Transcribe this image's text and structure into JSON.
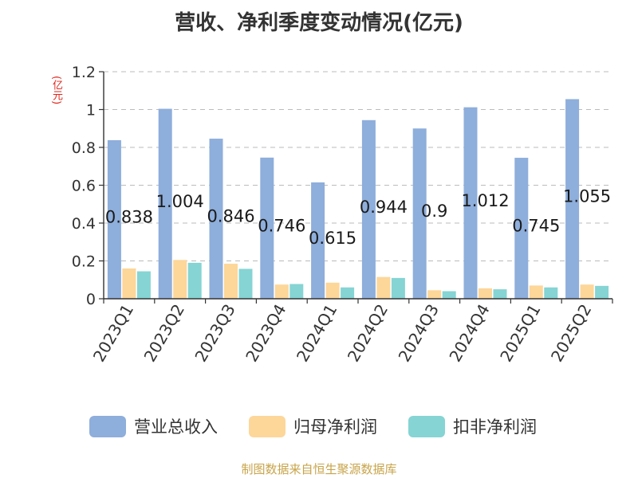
{
  "title": "营收、净利季度变动情况(亿元)",
  "unit": "(亿元)",
  "source": "制图数据来自恒生聚源数据库",
  "chart_data": {
    "type": "bar",
    "categories": [
      "2023Q1",
      "2023Q2",
      "2023Q3",
      "2023Q4",
      "2024Q1",
      "2024Q2",
      "2024Q3",
      "2024Q4",
      "2025Q1",
      "2025Q2"
    ],
    "series": [
      {
        "name": "营业总收入",
        "color": "#8eaedb",
        "values": [
          0.838,
          1.004,
          0.846,
          0.746,
          0.615,
          0.944,
          0.9,
          1.012,
          0.745,
          1.055
        ],
        "labels": [
          "0.838",
          "1.004",
          "0.846",
          "0.746",
          "0.615",
          "0.944",
          "0.9",
          "1.012",
          "0.745",
          "1.055"
        ]
      },
      {
        "name": "归母净利润",
        "color": "#fdd69a",
        "values": [
          0.16,
          0.205,
          0.185,
          0.075,
          0.085,
          0.115,
          0.045,
          0.055,
          0.07,
          0.075
        ]
      },
      {
        "name": "扣非净利润",
        "color": "#86d4d4",
        "values": [
          0.145,
          0.19,
          0.158,
          0.078,
          0.06,
          0.11,
          0.04,
          0.05,
          0.06,
          0.068
        ]
      }
    ],
    "yticks": [
      "0",
      "0.2",
      "0.4",
      "0.6",
      "0.8",
      "1",
      "1.2"
    ],
    "ylim": [
      0,
      1.2
    ],
    "grid": true,
    "legend_position": "bottom"
  }
}
